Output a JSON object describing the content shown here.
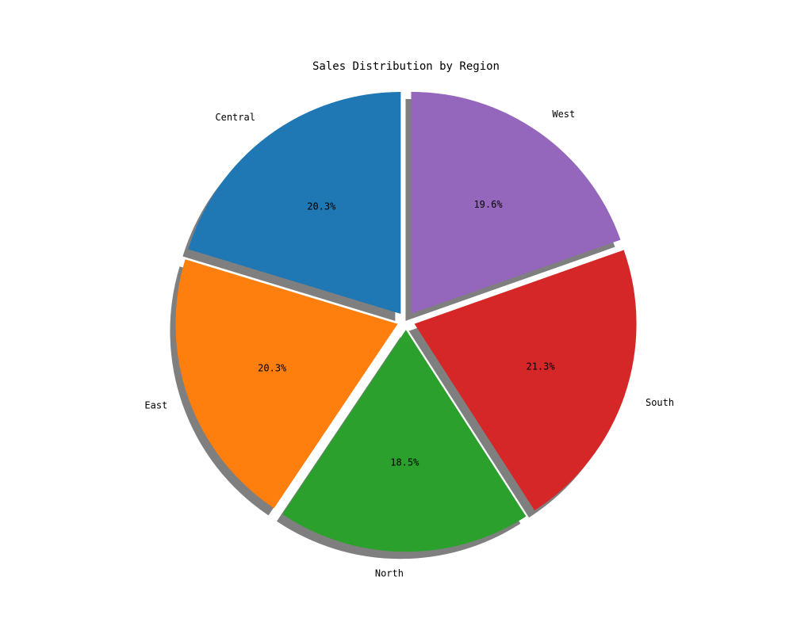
{
  "chart_data": {
    "type": "pie",
    "title": "Sales Distribution by Region",
    "categories": [
      "Central",
      "East",
      "North",
      "South",
      "West"
    ],
    "values": [
      20.3,
      20.3,
      18.5,
      21.3,
      19.6
    ],
    "value_labels": [
      "20.3%",
      "20.3%",
      "18.5%",
      "21.3%",
      "19.6%"
    ],
    "colors": [
      "#1f77b4",
      "#ff7f0e",
      "#2ca02c",
      "#d62728",
      "#9467bd"
    ],
    "start_angle_deg": 90,
    "direction": "counterclockwise",
    "exploded": true,
    "shadow": true,
    "legend": "none"
  }
}
